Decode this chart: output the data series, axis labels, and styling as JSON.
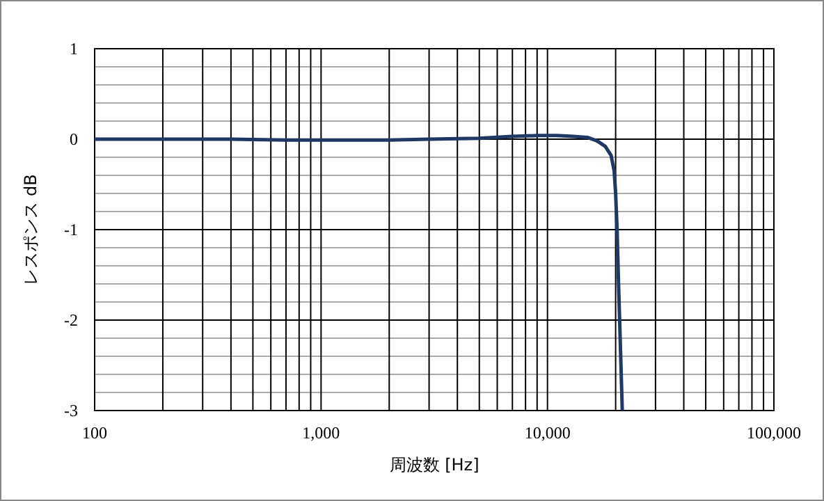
{
  "chart_data": {
    "type": "line",
    "xlabel": "周波数 [Hz]",
    "ylabel": "レスポンス dB",
    "log": "x",
    "grid": true,
    "line_style": "solid",
    "marker": "none",
    "xlim": [
      100,
      100000
    ],
    "xticks": [
      {
        "value": 100,
        "label": "100"
      },
      {
        "value": 1000,
        "label": "1,000"
      },
      {
        "value": 10000,
        "label": "10,000"
      },
      {
        "value": 100000,
        "label": "100,000"
      }
    ],
    "ylim": [
      -3,
      1
    ],
    "yticks": [
      -3,
      -2,
      -1,
      0,
      1
    ],
    "series": [
      {
        "color": "#1f3864",
        "x": [
          100,
          200,
          400,
          700,
          1000,
          1500,
          2000,
          3000,
          5000,
          7000,
          9000,
          11000,
          13000,
          15000,
          16600,
          18000,
          19100,
          19700,
          20000,
          20300,
          20600,
          21000,
          21400
        ],
        "values": [
          0,
          0,
          0,
          -0.01,
          -0.01,
          -0.01,
          -0.01,
          0,
          0.01,
          0.03,
          0.04,
          0.04,
          0.03,
          0.02,
          -0.02,
          -0.08,
          -0.18,
          -0.35,
          -0.6,
          -1,
          -1.6,
          -2.3,
          -3
        ]
      }
    ]
  }
}
